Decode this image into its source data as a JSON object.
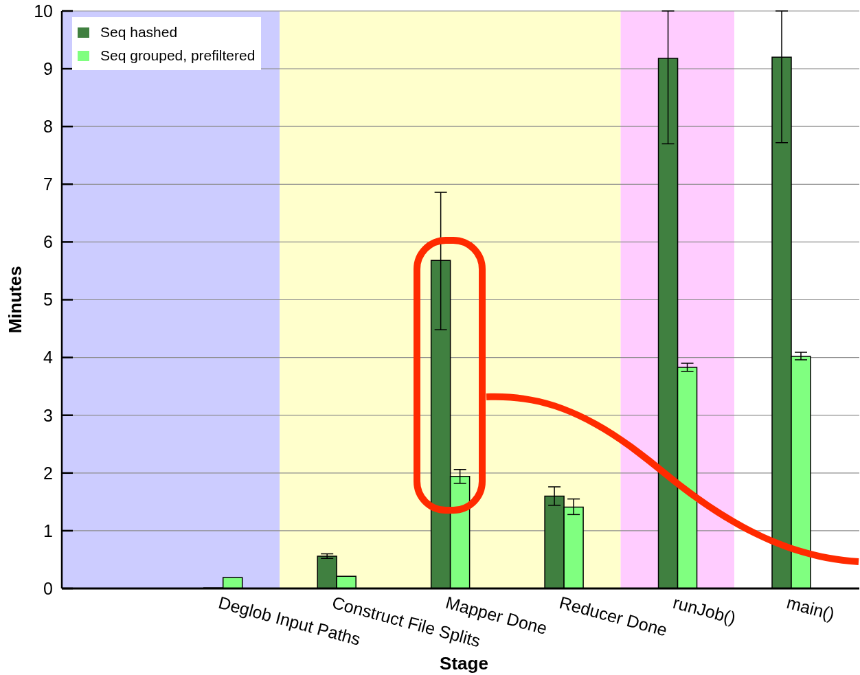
{
  "chart_data": {
    "type": "bar",
    "xlabel": "Stage",
    "ylabel": "Minutes",
    "categories": [
      "Deglob Input Paths",
      "Construct File Splits",
      "Mapper Done",
      "Reducer Done",
      "runJob()",
      "main()"
    ],
    "series": [
      {
        "name": "Seq hashed",
        "color": "#408040",
        "values": [
          0.01,
          0.56,
          5.68,
          1.6,
          9.18,
          9.2
        ],
        "errors": [
          null,
          [
            0.52,
            0.6
          ],
          [
            4.48,
            6.86
          ],
          [
            1.44,
            1.76
          ],
          [
            7.7,
            10
          ],
          [
            7.72,
            10
          ]
        ]
      },
      {
        "name": "Seq grouped, prefiltered",
        "color": "#80ff80",
        "values": [
          0.19,
          0.21,
          1.94,
          1.41,
          3.83,
          4.02
        ],
        "errors": [
          null,
          null,
          [
            1.82,
            2.06
          ],
          [
            1.28,
            1.55
          ],
          [
            3.76,
            3.9
          ],
          [
            3.96,
            4.09
          ]
        ]
      }
    ],
    "ylim": [
      0,
      10
    ],
    "yticks": [
      0,
      1,
      2,
      3,
      4,
      5,
      6,
      7,
      8,
      9,
      10
    ],
    "grid": "y",
    "legend": "top left",
    "bands": [
      {
        "axis": "x",
        "from": "Deglob Input Paths",
        "to": "Deglob Input Paths",
        "color": "#ccccff"
      },
      {
        "axis": "x",
        "from": "Construct File Splits",
        "to": "Reducer Done",
        "color": "#ffffcc"
      },
      {
        "axis": "x",
        "from": "runJob()",
        "to": "runJob()",
        "color": "#ffccff"
      }
    ]
  }
}
